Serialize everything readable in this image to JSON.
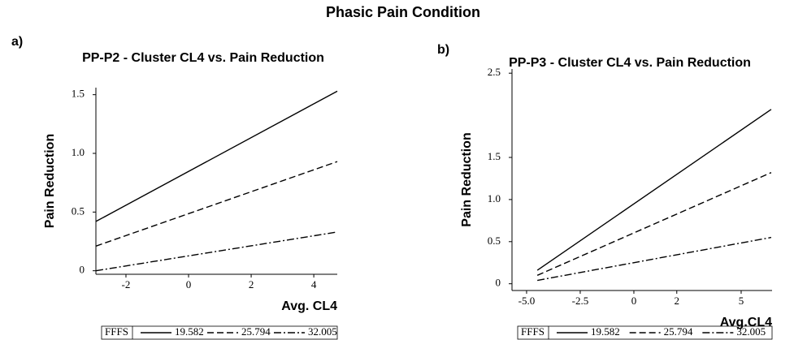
{
  "title": "Phasic Pain Condition",
  "chart_data": [
    {
      "type": "line",
      "label": "a)",
      "title": "PP-P2 - Cluster CL4 vs. Pain Reduction",
      "xlabel": "Avg. CL4",
      "ylabel": "Pain Reduction",
      "x": [
        -2.96,
        4.75
      ],
      "series": [
        {
          "name": "19.582",
          "color": "#000000",
          "style": "solid",
          "values": [
            0.42,
            1.53
          ]
        },
        {
          "name": "25.794",
          "color": "#000000",
          "style": "dashed",
          "values": [
            0.21,
            0.93
          ]
        },
        {
          "name": "32.005",
          "color": "#000000",
          "style": "dashdot",
          "values": [
            0,
            0.33
          ]
        }
      ],
      "legend_title": "FFFS",
      "xlim": [
        -2.96,
        4.75
      ],
      "xticks": [
        -2,
        0,
        2,
        4
      ],
      "ylim": [
        -0.03,
        1.56
      ],
      "yticks": [
        0,
        0.5,
        {
          "value": 1,
          "label": "1.0"
        },
        1.5
      ]
    },
    {
      "type": "line",
      "label": "b)",
      "title": "PP-P3 - Cluster CL4 vs. Pain Reduction",
      "xlabel": "Avg.CL4",
      "ylabel": "Pain Reduction",
      "x": [
        -4.5,
        6.4
      ],
      "series": [
        {
          "name": "19.582",
          "color": "#000000",
          "style": "solid",
          "values": [
            0.16,
            2.07
          ]
        },
        {
          "name": "25.794",
          "color": "#000000",
          "style": "dashed",
          "values": [
            0.1,
            1.32
          ]
        },
        {
          "name": "32.005",
          "color": "#000000",
          "style": "dashdot",
          "values": [
            0.04,
            0.55
          ]
        }
      ],
      "legend_title": "FFFS",
      "xlim": [
        -5.68,
        6.44
      ],
      "xticks": [
        {
          "value": -5,
          "label": "-5.0"
        },
        -2.5,
        0,
        2,
        5
      ],
      "ylim": [
        -0.08,
        2.55
      ],
      "yticks": [
        0,
        0.5,
        {
          "value": 1,
          "label": "1.0"
        },
        1.5,
        2.5
      ]
    }
  ]
}
